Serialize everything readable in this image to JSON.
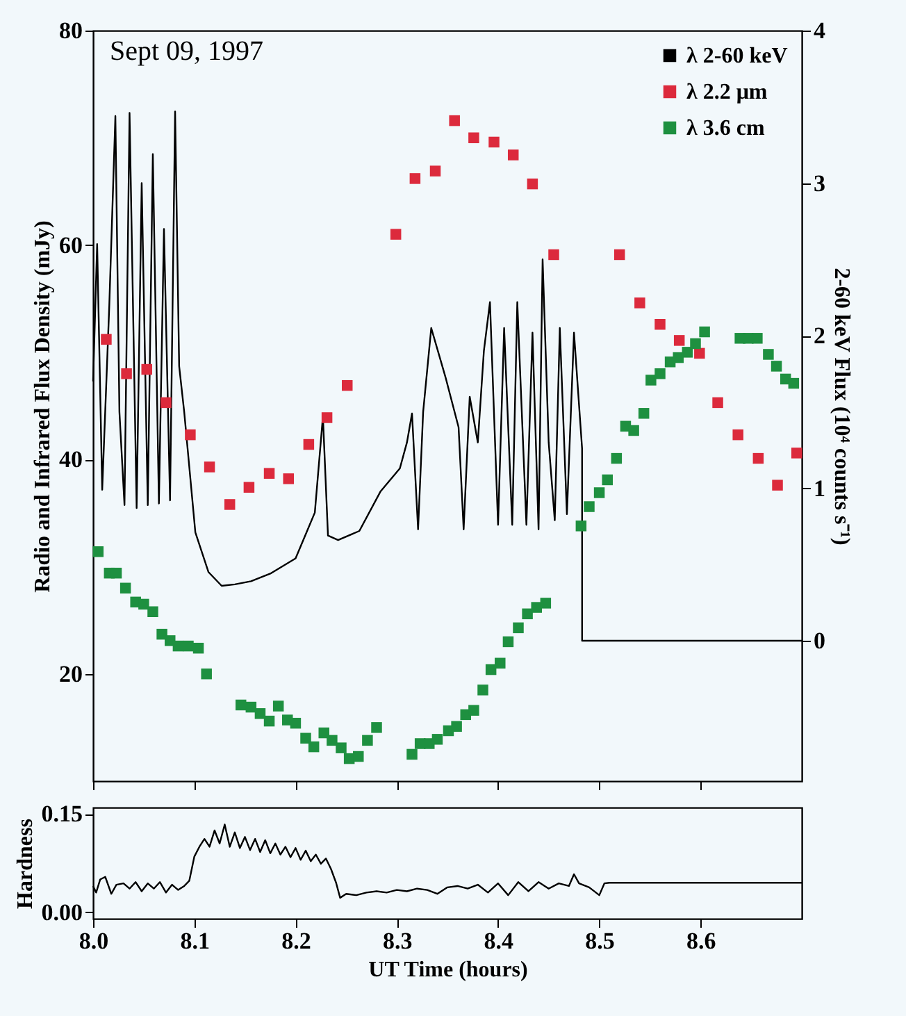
{
  "chart_data": [
    {
      "type": "scatter",
      "annotations": [
        "Sept 09, 1997"
      ],
      "ylabel": "Radio and Infrared Flux Density (mJy)",
      "y2label": "2-60 keV Flux (10⁴ counts s⁻¹)",
      "xlim": [
        8.0,
        8.7
      ],
      "xticks": [
        8.0,
        8.1,
        8.2,
        8.3,
        8.4,
        8.5,
        8.6
      ],
      "ylim": [
        10,
        80
      ],
      "yticks": [
        20,
        40,
        60,
        80
      ],
      "y2lim": [
        -0.92,
        4
      ],
      "y2ticks": [
        0,
        1,
        2,
        3,
        4
      ],
      "tick_labels": "y",
      "legend": "top right",
      "line_style": "solid",
      "grid": false,
      "series": [
        {
          "name": "λ 2-60 keV",
          "type": "line",
          "axis": "y2",
          "color": "#000000",
          "x": [
            8.0,
            8.004,
            8.009,
            8.016,
            8.022,
            8.026,
            8.031,
            8.036,
            8.043,
            8.048,
            8.054,
            8.059,
            8.065,
            8.07,
            8.076,
            8.081,
            8.085,
            8.09,
            8.101,
            8.114,
            8.127,
            8.14,
            8.156,
            8.175,
            8.2,
            8.219,
            8.227,
            8.232,
            8.242,
            8.263,
            8.284,
            8.303,
            8.31,
            8.315,
            8.321,
            8.326,
            8.334,
            8.348,
            8.361,
            8.366,
            8.372,
            8.38,
            8.386,
            8.392,
            8.4,
            8.406,
            8.414,
            8.419,
            8.428,
            8.434,
            8.44,
            8.444,
            8.45,
            8.456,
            8.461,
            8.468,
            8.475,
            8.483,
            8.483,
            8.7
          ],
          "values": [
            1.7,
            2.6,
            0.99,
            2.2,
            3.44,
            1.5,
            0.89,
            3.46,
            0.87,
            3.0,
            0.89,
            3.19,
            0.9,
            2.7,
            0.92,
            3.47,
            1.8,
            1.5,
            0.71,
            0.45,
            0.36,
            0.37,
            0.39,
            0.44,
            0.54,
            0.84,
            1.47,
            0.69,
            0.66,
            0.72,
            0.98,
            1.13,
            1.3,
            1.49,
            0.73,
            1.5,
            2.05,
            1.73,
            1.4,
            0.73,
            1.6,
            1.3,
            1.9,
            2.22,
            0.76,
            2.05,
            0.76,
            2.22,
            0.76,
            2.02,
            0.73,
            2.5,
            1.3,
            0.79,
            2.05,
            0.83,
            2.02,
            1.26,
            0,
            0
          ]
        },
        {
          "name": "λ 2.2 μm",
          "marker": "square",
          "color": "#dc2a3c",
          "x": [
            8.013,
            8.033,
            8.053,
            8.072,
            8.096,
            8.115,
            8.135,
            8.154,
            8.174,
            8.193,
            8.213,
            8.231,
            8.251,
            8.299,
            8.318,
            8.338,
            8.357,
            8.376,
            8.396,
            8.415,
            8.434,
            8.455,
            8.52,
            8.54,
            8.56,
            8.579,
            8.599,
            8.617,
            8.637,
            8.657,
            8.676,
            8.695
          ],
          "values": [
            51.2,
            48.0,
            48.4,
            45.3,
            42.3,
            39.3,
            35.8,
            37.4,
            38.7,
            38.2,
            41.4,
            43.9,
            46.9,
            61.0,
            66.2,
            66.9,
            71.6,
            70.0,
            69.6,
            68.4,
            65.7,
            59.1,
            59.1,
            54.6,
            52.6,
            51.1,
            49.9,
            45.3,
            42.3,
            40.1,
            37.6,
            40.6
          ]
        },
        {
          "name": "λ 3.6 cm",
          "marker": "square",
          "color": "#1e9040",
          "x": [
            8.005,
            8.016,
            8.023,
            8.032,
            8.042,
            8.05,
            8.059,
            8.068,
            8.076,
            8.084,
            8.094,
            8.104,
            8.112,
            8.146,
            8.156,
            8.165,
            8.174,
            8.183,
            8.192,
            8.2,
            8.21,
            8.218,
            8.228,
            8.236,
            8.245,
            8.253,
            8.262,
            8.271,
            8.28,
            8.315,
            8.323,
            8.332,
            8.34,
            8.351,
            8.359,
            8.368,
            8.376,
            8.385,
            8.393,
            8.402,
            8.41,
            8.42,
            8.429,
            8.438,
            8.447,
            8.482,
            8.49,
            8.5,
            8.508,
            8.517,
            8.526,
            8.534,
            8.544,
            8.551,
            8.56,
            8.57,
            8.578,
            8.587,
            8.595,
            8.604,
            8.639,
            8.647,
            8.656,
            8.667,
            8.675,
            8.684,
            8.692
          ],
          "values": [
            31.4,
            29.4,
            29.4,
            28.0,
            26.7,
            26.5,
            25.8,
            23.7,
            23.1,
            22.6,
            22.6,
            22.4,
            20.0,
            17.1,
            16.9,
            16.3,
            15.6,
            17.0,
            15.7,
            15.4,
            14.0,
            13.2,
            14.5,
            13.8,
            13.1,
            12.1,
            12.3,
            13.8,
            15.0,
            12.5,
            13.5,
            13.5,
            13.9,
            14.7,
            15.1,
            16.2,
            16.6,
            18.5,
            20.4,
            21.0,
            23.0,
            24.3,
            25.6,
            26.2,
            26.6,
            33.8,
            35.6,
            36.9,
            38.1,
            40.1,
            43.1,
            42.7,
            44.3,
            47.4,
            48.0,
            49.1,
            49.5,
            50.0,
            50.8,
            51.9,
            51.3,
            51.3,
            51.3,
            49.8,
            48.7,
            47.5,
            47.1
          ]
        }
      ]
    },
    {
      "type": "line",
      "xlabel": "UT Time (hours)",
      "ylabel": "Hardness",
      "xlim": [
        8.0,
        8.7
      ],
      "xticks": [
        {
          "value": 8.0,
          "label": "8.0"
        },
        {
          "value": 8.1,
          "label": "8.1"
        },
        {
          "value": 8.2,
          "label": "8.2"
        },
        {
          "value": 8.3,
          "label": "8.3"
        },
        {
          "value": 8.4,
          "label": "8.4"
        },
        {
          "value": 8.5,
          "label": "8.5"
        },
        {
          "value": 8.6,
          "label": "8.6"
        }
      ],
      "ylim": [
        -0.01,
        0.16
      ],
      "yticks": [
        {
          "value": 0,
          "label": "0.00"
        },
        {
          "value": 0.15,
          "label": "0.15"
        }
      ],
      "grid": false,
      "line_style": "solid",
      "series": [
        {
          "color": "#000000",
          "x": [
            8.0,
            8.003,
            8.007,
            8.012,
            8.018,
            8.023,
            8.03,
            8.036,
            8.042,
            8.048,
            8.054,
            8.06,
            8.066,
            8.072,
            8.078,
            8.084,
            8.09,
            8.095,
            8.1,
            8.105,
            8.11,
            8.115,
            8.12,
            8.125,
            8.13,
            8.135,
            8.14,
            8.145,
            8.15,
            8.155,
            8.16,
            8.165,
            8.17,
            8.175,
            8.18,
            8.185,
            8.19,
            8.195,
            8.2,
            8.205,
            8.21,
            8.215,
            8.22,
            8.225,
            8.23,
            8.235,
            8.24,
            8.244,
            8.25,
            8.26,
            8.27,
            8.28,
            8.29,
            8.3,
            8.31,
            8.32,
            8.33,
            8.34,
            8.35,
            8.36,
            8.37,
            8.38,
            8.39,
            8.4,
            8.41,
            8.42,
            8.43,
            8.44,
            8.45,
            8.46,
            8.47,
            8.475,
            8.48,
            8.49,
            8.5,
            8.505,
            8.51,
            8.7
          ],
          "values": [
            0.04,
            0.03,
            0.05,
            0.054,
            0.028,
            0.042,
            0.044,
            0.036,
            0.046,
            0.032,
            0.044,
            0.036,
            0.046,
            0.03,
            0.042,
            0.034,
            0.04,
            0.048,
            0.085,
            0.1,
            0.112,
            0.1,
            0.125,
            0.105,
            0.134,
            0.1,
            0.122,
            0.098,
            0.115,
            0.095,
            0.112,
            0.092,
            0.11,
            0.09,
            0.105,
            0.088,
            0.1,
            0.084,
            0.098,
            0.08,
            0.094,
            0.078,
            0.088,
            0.074,
            0.082,
            0.066,
            0.045,
            0.022,
            0.028,
            0.026,
            0.03,
            0.032,
            0.03,
            0.034,
            0.032,
            0.036,
            0.034,
            0.028,
            0.038,
            0.04,
            0.036,
            0.042,
            0.03,
            0.044,
            0.026,
            0.046,
            0.032,
            0.046,
            0.036,
            0.044,
            0.04,
            0.058,
            0.044,
            0.038,
            0.026,
            0.044,
            0.045,
            0.045
          ]
        }
      ]
    }
  ]
}
